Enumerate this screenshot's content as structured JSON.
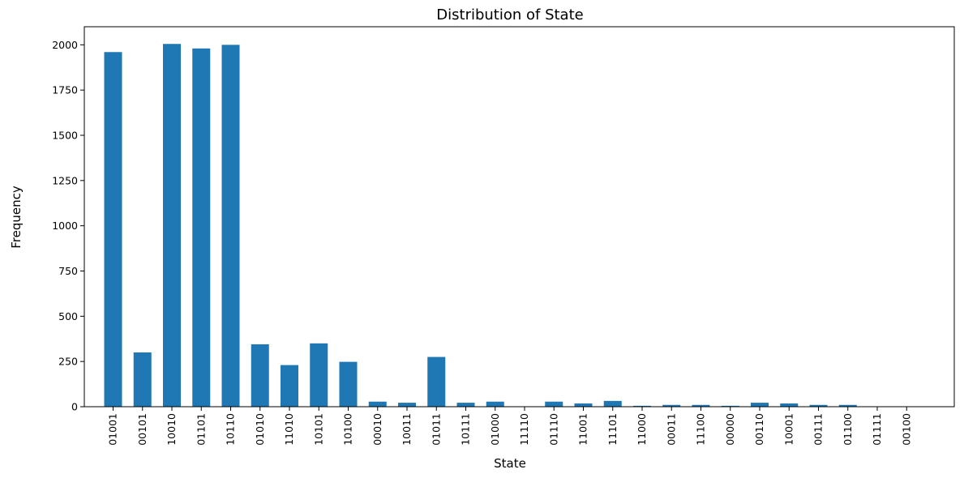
{
  "chart_data": {
    "type": "bar",
    "title": "Distribution of State",
    "xlabel": "State",
    "ylabel": "Frequency",
    "ylim": [
      0,
      2100
    ],
    "yticks": [
      0,
      250,
      500,
      750,
      1000,
      1250,
      1500,
      1750,
      2000
    ],
    "grid": false,
    "bar_color": "#1f77b4",
    "categories": [
      "01001",
      "00101",
      "10010",
      "01101",
      "10110",
      "01010",
      "11010",
      "10101",
      "10100",
      "00010",
      "10011",
      "01011",
      "10111",
      "01000",
      "11110",
      "01110",
      "11001",
      "11101",
      "11000",
      "00011",
      "11100",
      "00000",
      "00110",
      "10001",
      "00111",
      "01100",
      "01111",
      "00100"
    ],
    "values": [
      1960,
      300,
      2005,
      1980,
      2000,
      345,
      230,
      350,
      248,
      28,
      22,
      275,
      22,
      28,
      1,
      28,
      18,
      32,
      5,
      10,
      10,
      5,
      22,
      18,
      10,
      10,
      2,
      1
    ]
  }
}
